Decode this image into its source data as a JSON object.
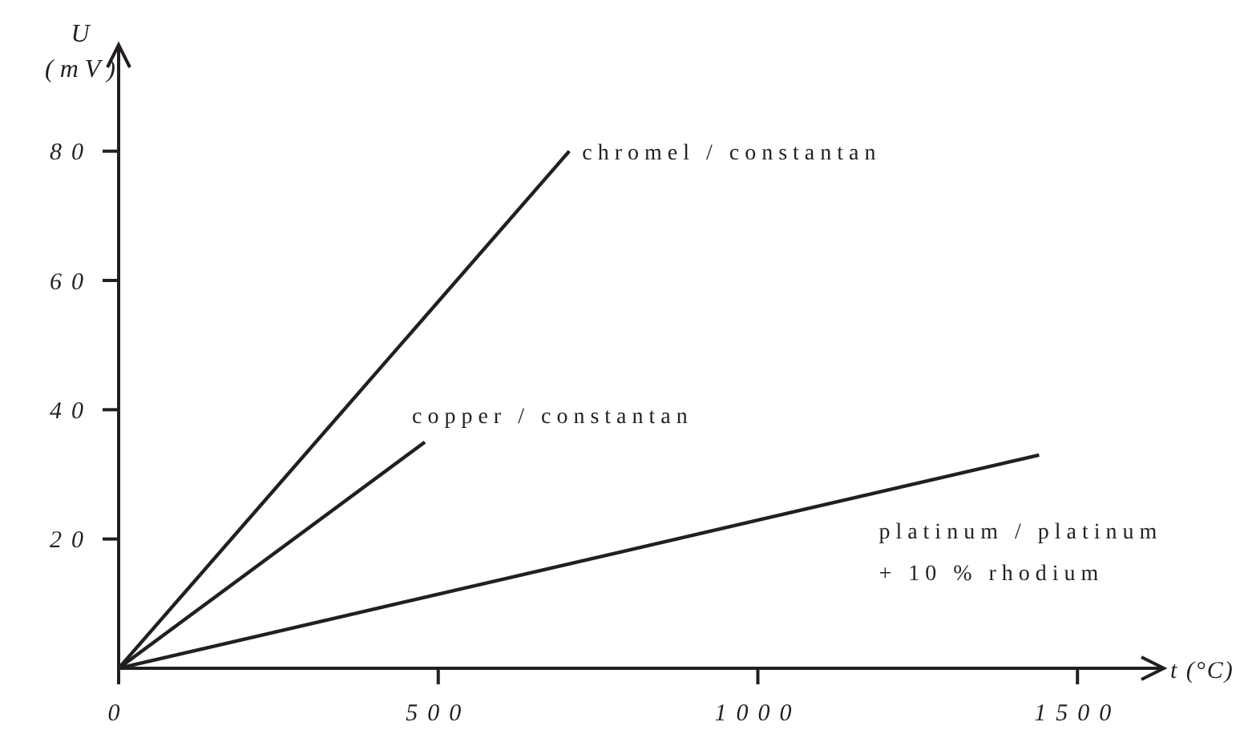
{
  "chart_data": {
    "type": "line",
    "xlabel": "t (°C)",
    "ylabel": "U\n(mV)",
    "xlim": [
      0,
      1600
    ],
    "ylim": [
      0,
      90
    ],
    "xticks": [
      0,
      500,
      1000,
      1500
    ],
    "yticks": [
      20,
      40,
      60,
      80
    ],
    "grid": false,
    "legend": false,
    "marker": "none",
    "line_style": "solid",
    "series": [
      {
        "name": "chromel / constantan",
        "color": "#231f20",
        "x": [
          0,
          705
        ],
        "values": [
          0,
          80
        ]
      },
      {
        "name": "copper / constantan",
        "color": "#231f20",
        "x": [
          0,
          479
        ],
        "values": [
          0,
          35
        ]
      },
      {
        "name": "platinum / platinum + 10 % rhodium",
        "color": "#231f20",
        "x": [
          0,
          1440
        ],
        "values": [
          0,
          33
        ]
      }
    ]
  }
}
